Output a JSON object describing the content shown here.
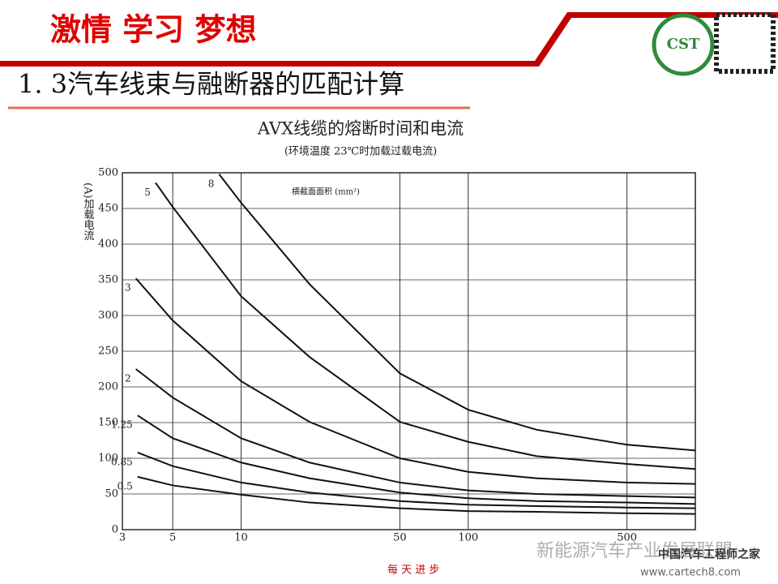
{
  "slide": {
    "motto": "激情 学习 梦想",
    "heading": "1. 3汽车线束与融断器的匹配计算",
    "logo": "CST",
    "footer": "每 天 进 步",
    "watermark": "新能源汽车产业发展联盟",
    "watermark2": "中国汽车工程师之家",
    "watermark3": "www.cartech8.com"
  },
  "chart_data": {
    "type": "line",
    "title": "AVX线缆的熔断时间和电流",
    "subtitle": "(环境温度 23℃时加载过载电流)",
    "y_label": "(A)加载电流",
    "annotation": "横截面面积 (mm²)",
    "xscale": "log",
    "xlim": [
      3,
      1000
    ],
    "xticks": [
      3,
      5,
      10,
      50,
      100,
      500
    ],
    "ylim": [
      0,
      500
    ],
    "yticks": [
      0,
      50,
      100,
      150,
      200,
      250,
      300,
      350,
      400,
      450,
      500
    ],
    "grid": true,
    "series": [
      {
        "name": "8",
        "color": "#111111",
        "x": [
          8,
          10,
          20,
          50,
          100,
          200,
          500,
          1000
        ],
        "values": [
          498,
          458,
          344,
          219,
          168,
          140,
          119,
          111
        ]
      },
      {
        "name": "5",
        "color": "#111111",
        "x": [
          4.2,
          5,
          10,
          20,
          50,
          100,
          200,
          500,
          1000
        ],
        "values": [
          486,
          452,
          327,
          242,
          151,
          123,
          103,
          92,
          85
        ]
      },
      {
        "name": "3",
        "color": "#111111",
        "x": [
          3.44,
          5,
          10,
          20,
          50,
          100,
          200,
          500,
          1000
        ],
        "values": [
          352,
          293,
          208,
          151,
          100,
          81,
          72,
          66,
          64
        ]
      },
      {
        "name": "2",
        "color": "#111111",
        "x": [
          3.44,
          5,
          10,
          20,
          50,
          100,
          200,
          500,
          1000
        ],
        "values": [
          225,
          185,
          128,
          94,
          66,
          55,
          50,
          47,
          45
        ]
      },
      {
        "name": "1.25",
        "color": "#111111",
        "x": [
          3.5,
          5,
          10,
          20,
          50,
          100,
          200,
          500,
          1000
        ],
        "values": [
          160,
          128,
          94,
          72,
          52,
          44,
          40,
          38,
          36
        ]
      },
      {
        "name": "0.85",
        "color": "#111111",
        "x": [
          3.5,
          5,
          10,
          20,
          50,
          100,
          200,
          500,
          1000
        ],
        "values": [
          108,
          89,
          66,
          52,
          40,
          35,
          33,
          31,
          30
        ]
      },
      {
        "name": "0.5",
        "color": "#111111",
        "x": [
          3.5,
          5,
          10,
          20,
          50,
          100,
          200,
          500,
          1000
        ],
        "values": [
          74,
          62,
          49,
          38,
          30,
          26,
          25,
          23,
          22
        ]
      }
    ]
  }
}
